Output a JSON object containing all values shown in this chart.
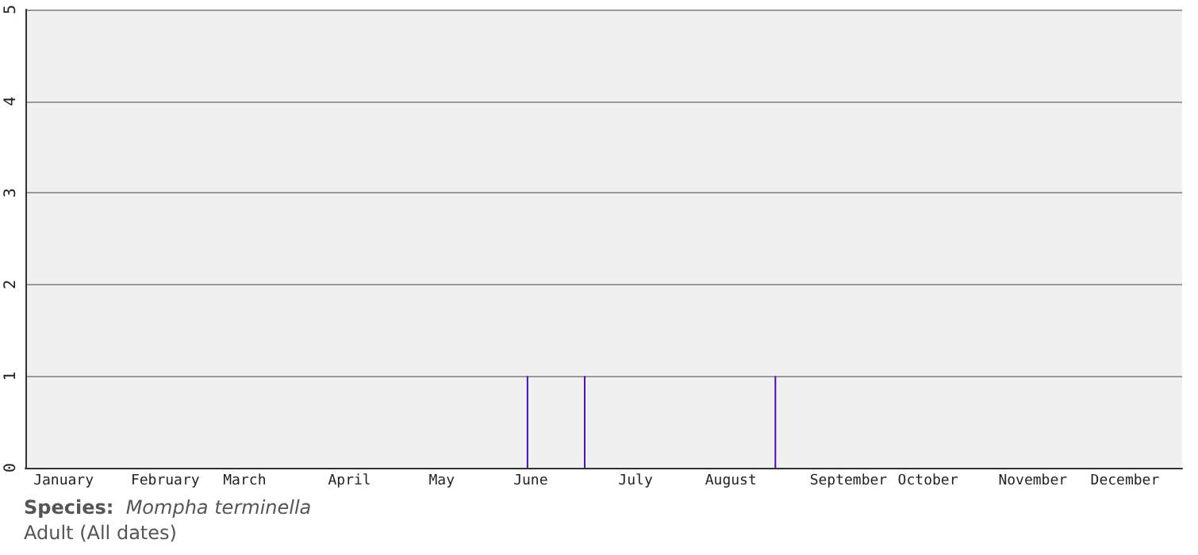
{
  "chart_data": {
    "type": "bar",
    "x": [
      "--06-08",
      "--06-26",
      "--08-25"
    ],
    "values": [
      1,
      1,
      1
    ],
    "color": "#4b10b4",
    "xlim": [
      "--01-01",
      "--12-31"
    ],
    "xticks": [
      {
        "value": "--01-13",
        "label": "January"
      },
      {
        "value": "--02-14",
        "label": "February"
      },
      {
        "value": "--03-11",
        "label": "March"
      },
      {
        "value": "--04-13",
        "label": "April"
      },
      {
        "value": "--05-12",
        "label": "May"
      },
      {
        "value": "--06-09",
        "label": "June"
      },
      {
        "value": "--07-12",
        "label": "July"
      },
      {
        "value": "--08-11",
        "label": "August"
      },
      {
        "value": "--09-17",
        "label": "September"
      },
      {
        "value": "--10-12",
        "label": "October"
      },
      {
        "value": "--11-14",
        "label": "November"
      },
      {
        "value": "--12-13",
        "label": "December"
      }
    ],
    "ylim": [
      0,
      5
    ],
    "yticks": [
      0,
      1,
      2,
      3,
      4,
      5
    ],
    "grid": "y",
    "annotations": [
      "Species: Mompha terminella",
      "Adult (All dates)"
    ]
  }
}
